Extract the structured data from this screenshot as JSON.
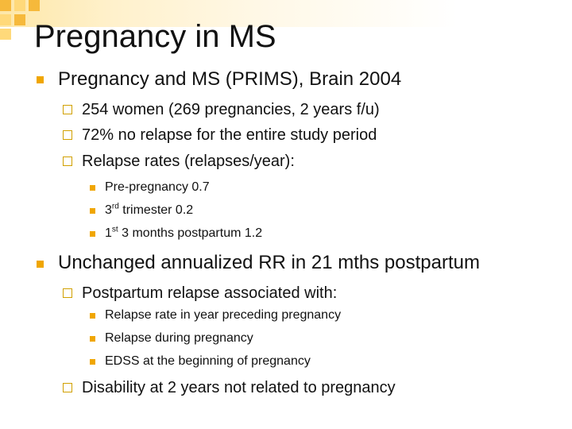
{
  "slide": {
    "title": "Pregnancy in MS",
    "items": [
      {
        "text": "Pregnancy and MS (PRIMS), Brain 2004",
        "subitems": [
          {
            "text": "254 women (269 pregnancies, 2 years f/u)"
          },
          {
            "text": "72% no relapse for the entire study period"
          },
          {
            "text": "Relapse rates (relapses/year):",
            "subitems": [
              {
                "text": "Pre-pregnancy 0.7"
              },
              {
                "pre": "3",
                "sup": "rd",
                "post": " trimester 0.2"
              },
              {
                "pre": "1",
                "sup": "st",
                "post": " 3 months postpartum 1.2"
              }
            ]
          }
        ]
      },
      {
        "text": "Unchanged annualized RR in 21 mths postpartum",
        "subitems": [
          {
            "text": "Postpartum relapse associated with:",
            "subitems": [
              {
                "text": "Relapse rate in year preceding pregnancy"
              },
              {
                "text": "Relapse during pregnancy"
              },
              {
                "text": "EDSS at the beginning of pregnancy"
              }
            ]
          },
          {
            "text": "Disability at 2 years not related to pregnancy"
          }
        ]
      }
    ]
  },
  "colors": {
    "accent": "#f0a600",
    "accent_light": "#ffd97a",
    "text": "#111111"
  }
}
